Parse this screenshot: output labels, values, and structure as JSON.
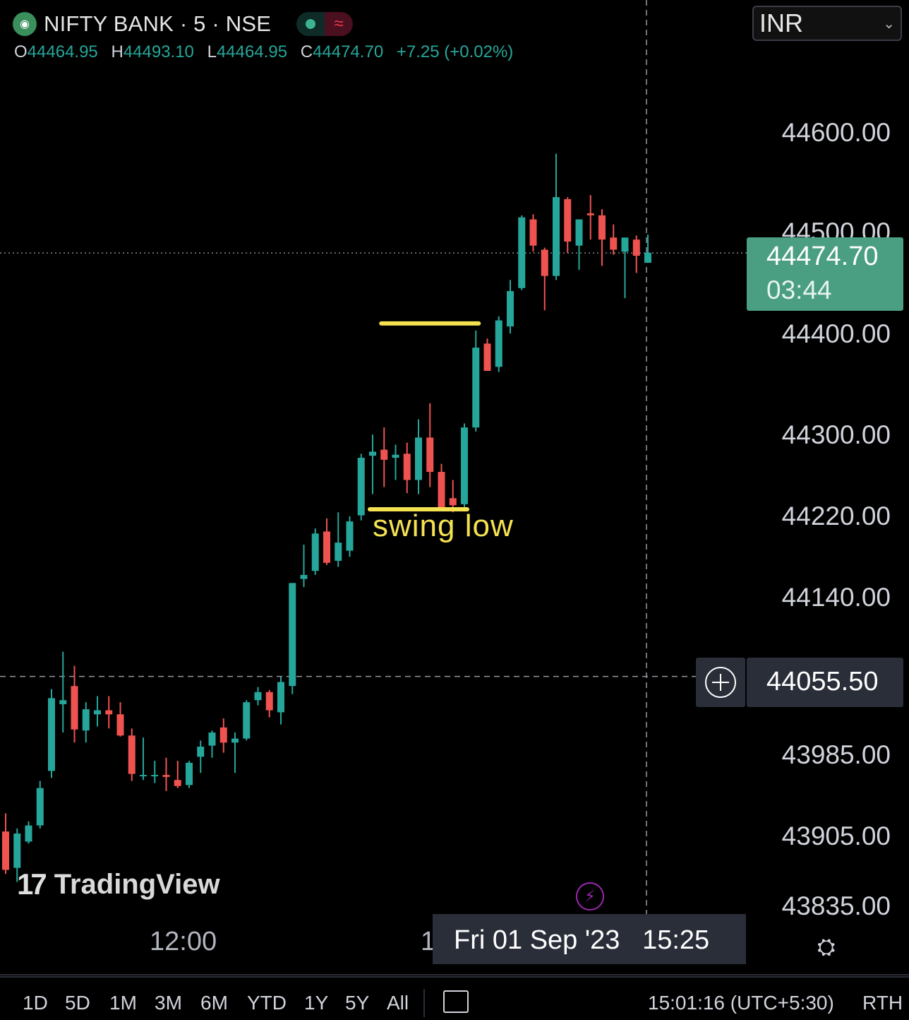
{
  "symbol": {
    "title": "NIFTY BANK · 5 · NSE"
  },
  "ohlc": {
    "o_label": "O",
    "o": "44464.95",
    "h_label": "H",
    "h": "44493.10",
    "l_label": "L",
    "l": "44464.95",
    "c_label": "C",
    "c": "44474.70",
    "change": "+7.25 (+0.02%)"
  },
  "currency": {
    "selected": "INR"
  },
  "price_axis": {
    "labels": [
      "44600.00",
      "44500.00",
      "44400.00",
      "44300.00",
      "44220.00",
      "44140.00",
      "43985.00",
      "43905.00",
      "43835.00"
    ]
  },
  "last_price": {
    "price": "44474.70",
    "countdown": "03:44"
  },
  "crosshair": {
    "price": "44055.50",
    "date": "Fri 01 Sep '23",
    "time": "15:25"
  },
  "annotation": {
    "text": "swing low"
  },
  "watermark": {
    "text": "TradingView"
  },
  "time_axis": {
    "labels": [
      "12:00",
      "1"
    ]
  },
  "bottom_bar": {
    "ranges": [
      "1D",
      "5D",
      "1M",
      "3M",
      "6M",
      "YTD",
      "1Y",
      "5Y",
      "All"
    ],
    "clock": "15:01:16 (UTC+5:30)",
    "session": "RTH"
  },
  "icons": {
    "logo": "nifty-bank-logo-icon",
    "flash": "lightning-icon",
    "settings": "settings-gear-icon",
    "calendar": "calendar-goto-icon",
    "add": "plus-circle-icon"
  },
  "colors": {
    "up": "#26a69a",
    "down": "#ef5350",
    "annotation": "#f5e251",
    "last_price_bg": "#4a9e82"
  },
  "chart_data": {
    "type": "candlestick",
    "interval": "5",
    "ylim": [
      43820,
      44660
    ],
    "candles": [
      {
        "o": 43902,
        "h": 43920,
        "l": 43860,
        "c": 43864
      },
      {
        "o": 43866,
        "h": 43905,
        "l": 43852,
        "c": 43900
      },
      {
        "o": 43892,
        "h": 43912,
        "l": 43890,
        "c": 43908
      },
      {
        "o": 43908,
        "h": 43952,
        "l": 43905,
        "c": 43945
      },
      {
        "o": 43962,
        "h": 44043,
        "l": 43955,
        "c": 44034
      },
      {
        "o": 44028,
        "h": 44080,
        "l": 44000,
        "c": 44032
      },
      {
        "o": 44046,
        "h": 44066,
        "l": 43990,
        "c": 44003
      },
      {
        "o": 44002,
        "h": 44030,
        "l": 43990,
        "c": 44023
      },
      {
        "o": 44018,
        "h": 44036,
        "l": 44006,
        "c": 44022
      },
      {
        "o": 44022,
        "h": 44036,
        "l": 44004,
        "c": 44018
      },
      {
        "o": 44018,
        "h": 44030,
        "l": 43996,
        "c": 43997
      },
      {
        "o": 43997,
        "h": 44004,
        "l": 43952,
        "c": 43959
      },
      {
        "o": 43958,
        "h": 43995,
        "l": 43953,
        "c": 43958
      },
      {
        "o": 43958,
        "h": 43972,
        "l": 43950,
        "c": 43958
      },
      {
        "o": 43958,
        "h": 43975,
        "l": 43942,
        "c": 43956
      },
      {
        "o": 43953,
        "h": 43972,
        "l": 43945,
        "c": 43947
      },
      {
        "o": 43948,
        "h": 43972,
        "l": 43945,
        "c": 43970
      },
      {
        "o": 43976,
        "h": 43992,
        "l": 43960,
        "c": 43986
      },
      {
        "o": 43987,
        "h": 44002,
        "l": 43975,
        "c": 44000
      },
      {
        "o": 44005,
        "h": 44014,
        "l": 43980,
        "c": 43990
      },
      {
        "o": 43990,
        "h": 44000,
        "l": 43960,
        "c": 43994
      },
      {
        "o": 43994,
        "h": 44032,
        "l": 43992,
        "c": 44030
      },
      {
        "o": 44032,
        "h": 44045,
        "l": 44027,
        "c": 44040
      },
      {
        "o": 44040,
        "h": 44042,
        "l": 44015,
        "c": 44022
      },
      {
        "o": 44020,
        "h": 44055,
        "l": 44008,
        "c": 44050
      },
      {
        "o": 44046,
        "h": 44148,
        "l": 44038,
        "c": 44148
      },
      {
        "o": 44152,
        "h": 44186,
        "l": 44144,
        "c": 44156
      },
      {
        "o": 44160,
        "h": 44202,
        "l": 44156,
        "c": 44197
      },
      {
        "o": 44199,
        "h": 44212,
        "l": 44166,
        "c": 44168
      },
      {
        "o": 44170,
        "h": 44218,
        "l": 44164,
        "c": 44188
      },
      {
        "o": 44180,
        "h": 44214,
        "l": 44174,
        "c": 44209
      },
      {
        "o": 44215,
        "h": 44276,
        "l": 44210,
        "c": 44272
      },
      {
        "o": 44274,
        "h": 44295,
        "l": 44236,
        "c": 44278
      },
      {
        "o": 44280,
        "h": 44302,
        "l": 44243,
        "c": 44270
      },
      {
        "o": 44272,
        "h": 44285,
        "l": 44250,
        "c": 44275
      },
      {
        "o": 44276,
        "h": 44287,
        "l": 44237,
        "c": 44250
      },
      {
        "o": 44250,
        "h": 44310,
        "l": 44236,
        "c": 44292
      },
      {
        "o": 44292,
        "h": 44326,
        "l": 44243,
        "c": 44258
      },
      {
        "o": 44258,
        "h": 44266,
        "l": 44220,
        "c": 44223
      },
      {
        "o": 44232,
        "h": 44250,
        "l": 44218,
        "c": 44225
      },
      {
        "o": 44226,
        "h": 44306,
        "l": 44222,
        "c": 44302
      },
      {
        "o": 44302,
        "h": 44398,
        "l": 44298,
        "c": 44381
      },
      {
        "o": 44385,
        "h": 44390,
        "l": 44358,
        "c": 44358
      },
      {
        "o": 44362,
        "h": 44412,
        "l": 44357,
        "c": 44408
      },
      {
        "o": 44402,
        "h": 44448,
        "l": 44395,
        "c": 44437
      },
      {
        "o": 44440,
        "h": 44512,
        "l": 44438,
        "c": 44510
      },
      {
        "o": 44508,
        "h": 44513,
        "l": 44476,
        "c": 44482
      },
      {
        "o": 44478,
        "h": 44480,
        "l": 44418,
        "c": 44452
      },
      {
        "o": 44452,
        "h": 44573,
        "l": 44448,
        "c": 44530
      },
      {
        "o": 44528,
        "h": 44530,
        "l": 44475,
        "c": 44486
      },
      {
        "o": 44482,
        "h": 44508,
        "l": 44458,
        "c": 44508
      },
      {
        "o": 44514,
        "h": 44532,
        "l": 44488,
        "c": 44512
      },
      {
        "o": 44512,
        "h": 44518,
        "l": 44462,
        "c": 44488
      },
      {
        "o": 44490,
        "h": 44503,
        "l": 44473,
        "c": 44478
      },
      {
        "o": 44476,
        "h": 44490,
        "l": 44430,
        "c": 44490
      },
      {
        "o": 44488,
        "h": 44492,
        "l": 44455,
        "c": 44472
      },
      {
        "o": 44465,
        "h": 44493,
        "l": 44465,
        "c": 44475
      }
    ],
    "annotations": [
      {
        "type": "horizontal-segment",
        "price": 44405,
        "from_index": 33,
        "to_index": 41
      },
      {
        "type": "horizontal-segment",
        "price": 44221,
        "from_index": 32,
        "to_index": 40,
        "label": "swing low"
      }
    ],
    "last_price": 44474.7,
    "crosshair_price": 44055.5
  }
}
